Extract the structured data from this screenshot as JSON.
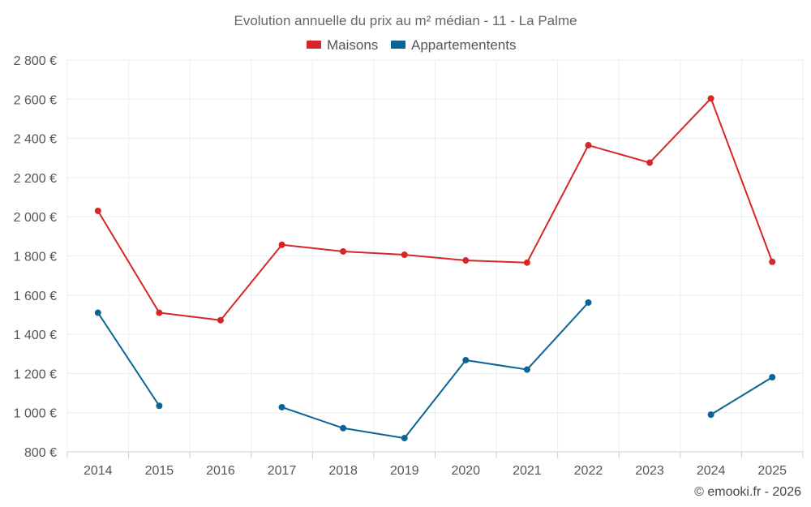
{
  "chart_data": {
    "type": "line",
    "title": "Evolution annuelle du prix au m² médian - 11 - La Palme",
    "categories": [
      "2014",
      "2015",
      "2016",
      "2017",
      "2018",
      "2019",
      "2020",
      "2021",
      "2022",
      "2023",
      "2024",
      "2025"
    ],
    "series": [
      {
        "name": "Maisons",
        "color": "#d62728",
        "values": [
          2030,
          1510,
          1472,
          1857,
          1823,
          1806,
          1777,
          1766,
          2365,
          2276,
          2604,
          1770
        ]
      },
      {
        "name": "Appartementents",
        "color": "#0b6496",
        "values": [
          1510,
          1035,
          null,
          1028,
          921,
          870,
          1268,
          1220,
          1562,
          null,
          990,
          1181
        ]
      }
    ],
    "y_ticks": [
      {
        "value": 800,
        "label": "800 €"
      },
      {
        "value": 1000,
        "label": "1 000 €"
      },
      {
        "value": 1200,
        "label": "1 200 €"
      },
      {
        "value": 1400,
        "label": "1 400 €"
      },
      {
        "value": 1600,
        "label": "1 600 €"
      },
      {
        "value": 1800,
        "label": "1 800 €"
      },
      {
        "value": 2000,
        "label": "2 000 €"
      },
      {
        "value": 2200,
        "label": "2 200 €"
      },
      {
        "value": 2400,
        "label": "2 400 €"
      },
      {
        "value": 2600,
        "label": "2 600 €"
      },
      {
        "value": 2800,
        "label": "2 800 €"
      }
    ],
    "ylim": [
      800,
      2800
    ],
    "grid": true,
    "legend_position": "top-center",
    "credit": "© emooki.fr - 2026"
  }
}
